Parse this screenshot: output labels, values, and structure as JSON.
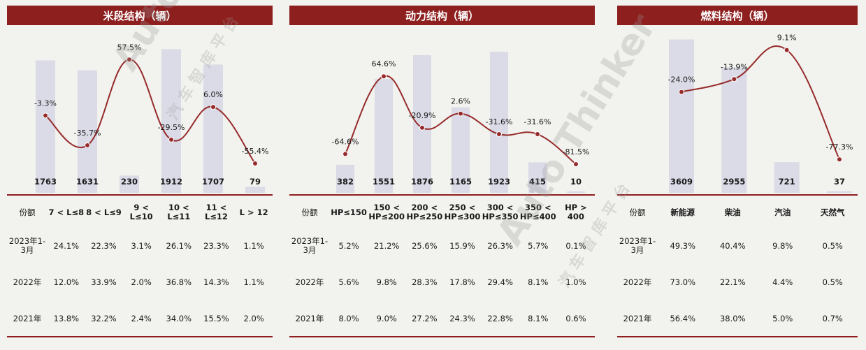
{
  "panels": [
    {
      "title": "米段结构（辆）"
    },
    {
      "title": "动力结构（辆）"
    },
    {
      "title": "燃料结构（辆）"
    }
  ],
  "tables": [
    {
      "headers": [
        "份额",
        "7 < L≤8",
        "8 < L≤9",
        "9 < L≤10",
        "10 < L≤11",
        "11 < L≤12",
        "L > 12"
      ],
      "rows": [
        [
          "2023年1-3月",
          "24.1%",
          "22.3%",
          "3.1%",
          "26.1%",
          "23.3%",
          "1.1%"
        ],
        [
          "2022年",
          "12.0%",
          "33.9%",
          "2.0%",
          "36.8%",
          "14.3%",
          "1.1%"
        ],
        [
          "2021年",
          "13.8%",
          "32.2%",
          "2.4%",
          "34.0%",
          "15.5%",
          "2.0%"
        ]
      ]
    },
    {
      "headers": [
        "份额",
        "HP≤150",
        "150 < HP≤200",
        "200 < HP≤250",
        "250 < HP≤300",
        "300 < HP≤350",
        "350 < HP≤400",
        "HP > 400"
      ],
      "rows": [
        [
          "2023年1-3月",
          "5.2%",
          "21.2%",
          "25.6%",
          "15.9%",
          "26.3%",
          "5.7%",
          "0.1%"
        ],
        [
          "2022年",
          "5.6%",
          "9.8%",
          "28.3%",
          "17.8%",
          "29.4%",
          "8.1%",
          "1.0%"
        ],
        [
          "2021年",
          "8.0%",
          "9.0%",
          "27.2%",
          "24.3%",
          "22.8%",
          "8.1%",
          "0.6%"
        ]
      ]
    },
    {
      "headers": [
        "份额",
        "新能源",
        "柴油",
        "汽油",
        "天然气"
      ],
      "rows": [
        [
          "2023年1-3月",
          "49.3%",
          "40.4%",
          "9.8%",
          "0.5%"
        ],
        [
          "2022年",
          "73.0%",
          "22.1%",
          "4.4%",
          "0.5%"
        ],
        [
          "2021年",
          "56.4%",
          "38.0%",
          "5.0%",
          "0.7%"
        ]
      ]
    }
  ],
  "chart_data": [
    {
      "type": "bar",
      "title": "米段结构（辆）",
      "categories": [
        "7 < L≤8",
        "8 < L≤9",
        "9 < L≤10",
        "10 < L≤11",
        "11 < L≤12",
        "L > 12"
      ],
      "values": [
        1763,
        1631,
        230,
        1912,
        1707,
        79
      ],
      "value_labels": [
        "1763",
        "1631",
        "230",
        "1912",
        "1707",
        "79"
      ],
      "growth": [
        -3.3,
        -35.7,
        57.5,
        -29.5,
        6.0,
        -55.4
      ],
      "growth_labels": [
        "-3.3%",
        "-35.7%",
        "57.5%",
        "-29.5%",
        "6.0%",
        "-55.4%"
      ],
      "series_color": "#962b2b",
      "bar_color": "#dadbe6"
    },
    {
      "type": "bar",
      "title": "动力结构（辆）",
      "categories": [
        "HP≤150",
        "150 < HP≤200",
        "200 < HP≤250",
        "250 < HP≤300",
        "300 < HP≤350",
        "350 < HP≤400",
        "HP > 400"
      ],
      "values": [
        382,
        1551,
        1876,
        1165,
        1923,
        415,
        10
      ],
      "value_labels": [
        "382",
        "1551",
        "1876",
        "1165",
        "1923",
        "415",
        "10"
      ],
      "growth": [
        -64.6,
        64.6,
        -20.9,
        2.6,
        -31.6,
        -31.6,
        -81.5
      ],
      "growth_labels": [
        "-64.6%",
        "64.6%",
        "-20.9%",
        "2.6%",
        "-31.6%",
        "-31.6%",
        "-81.5%"
      ],
      "series_color": "#962b2b",
      "bar_color": "#dadbe6"
    },
    {
      "type": "bar",
      "title": "燃料结构（辆）",
      "categories": [
        "新能源",
        "柴油",
        "汽油",
        "天然气"
      ],
      "values": [
        3609,
        2955,
        721,
        37
      ],
      "value_labels": [
        "3609",
        "2955",
        "721",
        "37"
      ],
      "growth": [
        -24.0,
        -13.9,
        9.1,
        -77.3
      ],
      "growth_labels": [
        "-24.0%",
        "-13.9%",
        "9.1%",
        "-77.3%"
      ],
      "series_color": "#962b2b",
      "bar_color": "#dadbe6"
    }
  ],
  "watermark": {
    "brand": "Auto Thinker",
    "cn": "汽 车 智 库 平 台"
  }
}
